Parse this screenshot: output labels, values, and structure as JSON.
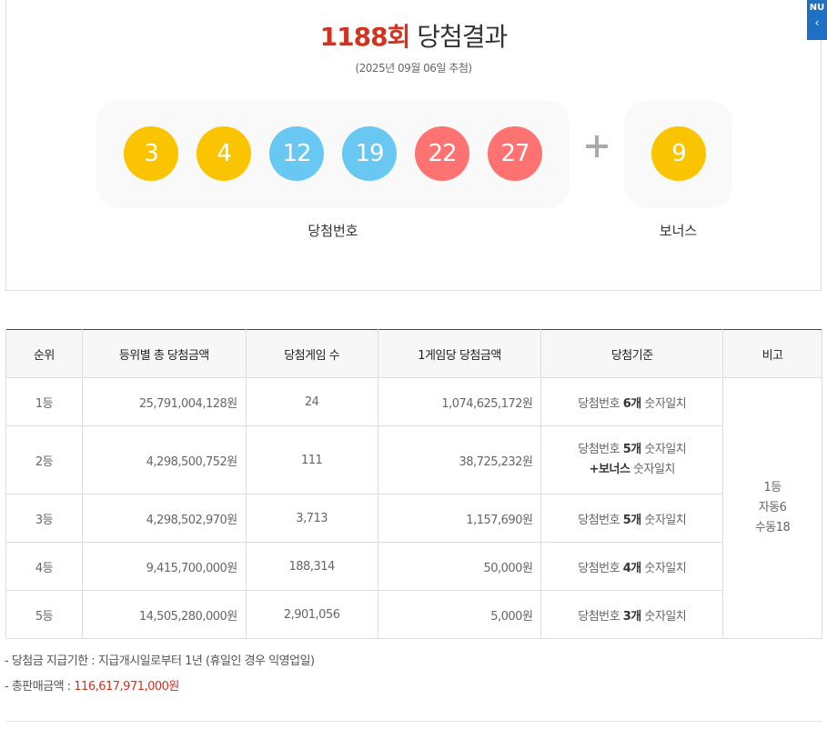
{
  "header": {
    "round": "1188회",
    "title_suffix": "당첨결과",
    "draw_date": "(2025년 09월 06일 추첨)"
  },
  "winning": {
    "numbers": [
      {
        "value": "3",
        "color": "#fbc400"
      },
      {
        "value": "4",
        "color": "#fbc400"
      },
      {
        "value": "12",
        "color": "#69c8f2"
      },
      {
        "value": "19",
        "color": "#69c8f2"
      },
      {
        "value": "22",
        "color": "#ff7272"
      },
      {
        "value": "27",
        "color": "#ff7272"
      }
    ],
    "bonus": {
      "value": "9",
      "color": "#fbc400"
    },
    "numbers_label": "당첨번호",
    "bonus_label": "보너스",
    "plus_icon": "plus-icon"
  },
  "side_tab": {
    "text": "NU",
    "arrow_icon": "chevron-left-icon"
  },
  "table": {
    "headers": [
      "순위",
      "등위별 총 당첨금액",
      "당첨게임 수",
      "1게임당 당첨금액",
      "당첨기준",
      "비고"
    ],
    "rows": [
      {
        "rank": "1등",
        "total": "25,791,004,128원",
        "games": "24",
        "per_game": "1,074,625,172원",
        "crit_a": "당첨번호 ",
        "crit_b": "6개",
        "crit_c": " 숫자일치"
      },
      {
        "rank": "2등",
        "total": "4,298,500,752원",
        "games": "111",
        "per_game": "38,725,232원",
        "crit_a": "당첨번호 ",
        "crit_b": "5개",
        "crit_c": " 숫자일치",
        "crit_d": "+보너스",
        "crit_e": " 숫자일치"
      },
      {
        "rank": "3등",
        "total": "4,298,502,970원",
        "games": "3,713",
        "per_game": "1,157,690원",
        "crit_a": "당첨번호 ",
        "crit_b": "5개",
        "crit_c": " 숫자일치"
      },
      {
        "rank": "4등",
        "total": "9,415,700,000원",
        "games": "188,314",
        "per_game": "50,000원",
        "crit_a": "당첨번호 ",
        "crit_b": "4개",
        "crit_c": " 숫자일치"
      },
      {
        "rank": "5등",
        "total": "14,505,280,000원",
        "games": "2,901,056",
        "per_game": "5,000원",
        "crit_a": "당첨번호 ",
        "crit_b": "3개",
        "crit_c": " 숫자일치"
      }
    ],
    "note": {
      "line1": "1등",
      "line2": "자동6",
      "line3": "수동18"
    }
  },
  "footnotes": {
    "deadline": "-  당첨금 지급기한 : 지급개시일로부터 1년 (휴일인 경우 익영업일)",
    "sales_label": "-  총판매금액 : ",
    "sales_amount": "116,617,971,000원"
  }
}
